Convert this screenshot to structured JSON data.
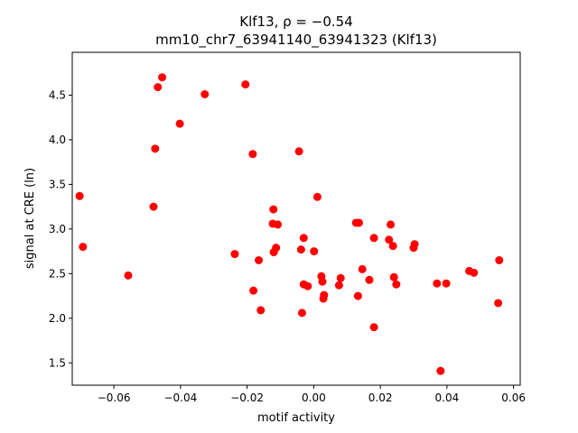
{
  "chart_data": {
    "type": "scatter",
    "title_line1": "Klf13, ρ = −0.54",
    "title_line2": "mm10_chr7_63941140_63941323 (Klf13)",
    "xlabel": "motif activity",
    "ylabel": "signal at CRE (ln)",
    "xlim": [
      -0.0725,
      0.062
    ],
    "ylim": [
      1.25,
      4.98
    ],
    "xticks": [
      -0.06,
      -0.04,
      -0.02,
      0.0,
      0.02,
      0.04,
      0.06
    ],
    "xtick_labels": [
      "−0.06",
      "−0.04",
      "−0.02",
      "0.00",
      "0.02",
      "0.04",
      "0.06"
    ],
    "yticks": [
      1.5,
      2.0,
      2.5,
      3.0,
      3.5,
      4.0,
      4.5
    ],
    "ytick_labels": [
      "1.5",
      "2.0",
      "2.5",
      "3.0",
      "3.5",
      "4.0",
      "4.5"
    ],
    "grid": false,
    "marker_color": "#ff0000",
    "points": [
      [
        -0.0703,
        3.37
      ],
      [
        -0.0693,
        2.8
      ],
      [
        -0.0557,
        2.48
      ],
      [
        -0.0481,
        3.25
      ],
      [
        -0.0476,
        3.9
      ],
      [
        -0.0468,
        4.59
      ],
      [
        -0.0455,
        4.7
      ],
      [
        -0.0402,
        4.18
      ],
      [
        -0.0327,
        4.51
      ],
      [
        -0.0237,
        2.72
      ],
      [
        -0.0205,
        4.62
      ],
      [
        -0.0183,
        3.84
      ],
      [
        -0.0181,
        2.31
      ],
      [
        -0.0165,
        2.65
      ],
      [
        -0.0159,
        2.09
      ],
      [
        -0.0121,
        3.22
      ],
      [
        -0.0123,
        3.06
      ],
      [
        -0.0108,
        3.05
      ],
      [
        -0.012,
        2.74
      ],
      [
        -0.0113,
        2.79
      ],
      [
        -0.0044,
        3.87
      ],
      [
        -0.0038,
        2.77
      ],
      [
        -0.0035,
        2.06
      ],
      [
        -0.003,
        2.9
      ],
      [
        -0.003,
        2.38
      ],
      [
        -0.0018,
        2.36
      ],
      [
        0.0001,
        2.75
      ],
      [
        0.0011,
        3.36
      ],
      [
        0.0023,
        2.47
      ],
      [
        0.0026,
        2.41
      ],
      [
        0.0029,
        2.22
      ],
      [
        0.0031,
        2.26
      ],
      [
        0.0076,
        2.37
      ],
      [
        0.0081,
        2.45
      ],
      [
        0.0127,
        3.07
      ],
      [
        0.0136,
        3.07
      ],
      [
        0.0133,
        2.25
      ],
      [
        0.0146,
        2.55
      ],
      [
        0.0167,
        2.43
      ],
      [
        0.0181,
        2.9
      ],
      [
        0.0181,
        1.9
      ],
      [
        0.0226,
        2.88
      ],
      [
        0.0231,
        3.05
      ],
      [
        0.0238,
        2.81
      ],
      [
        0.0241,
        2.46
      ],
      [
        0.0248,
        2.38
      ],
      [
        0.03,
        2.79
      ],
      [
        0.0303,
        2.83
      ],
      [
        0.037,
        2.39
      ],
      [
        0.0381,
        1.41
      ],
      [
        0.0398,
        2.39
      ],
      [
        0.0467,
        2.53
      ],
      [
        0.0481,
        2.51
      ],
      [
        0.0554,
        2.17
      ],
      [
        0.0557,
        2.65
      ]
    ]
  }
}
